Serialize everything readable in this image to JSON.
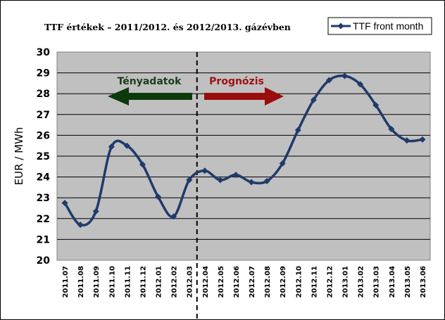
{
  "chart_data": {
    "type": "line",
    "title": "TTF értékek – 2011/2012.  és 2012/2013.  gázévben",
    "xlabel": "",
    "ylabel": "EUR / MWh",
    "ylim": [
      20,
      30
    ],
    "yticks": [
      20,
      21,
      22,
      23,
      24,
      25,
      26,
      27,
      28,
      29,
      30
    ],
    "grid": true,
    "legend_position": "top-right",
    "categories": [
      "2011.07",
      "2011.08",
      "2011.09",
      "2011.10",
      "2011.11",
      "2011.12",
      "2012.01",
      "2012.02",
      "2012.03",
      "2012.04",
      "2012.05",
      "2012.06",
      "2012.07",
      "2012.08",
      "2012.09",
      "2012.10",
      "2012.11",
      "2012.12",
      "2013.01",
      "2013.02",
      "2013.03",
      "2013.04",
      "2013.05",
      "2013.06"
    ],
    "series": [
      {
        "name": "TTF front month",
        "color": "#1f3a6b",
        "values": [
          22.75,
          21.7,
          22.35,
          25.45,
          25.5,
          24.6,
          23.05,
          22.1,
          23.85,
          24.3,
          23.85,
          24.1,
          23.75,
          23.8,
          24.65,
          26.25,
          27.7,
          28.65,
          28.85,
          28.45,
          27.45,
          26.3,
          25.75,
          25.8
        ]
      }
    ],
    "divider_after_category": "2012.03",
    "annotations": [
      {
        "text": "Tényadatok",
        "color": "#1a3d1a",
        "direction": "left"
      },
      {
        "text": "Prognózis",
        "color": "#a01010",
        "direction": "right"
      }
    ],
    "colors": {
      "plot_background": "#c0c0c0",
      "gridline": "#000000",
      "line": "#1f3a6b",
      "arrow_left": "#0d3a0d",
      "arrow_right": "#9a0d0d"
    }
  }
}
